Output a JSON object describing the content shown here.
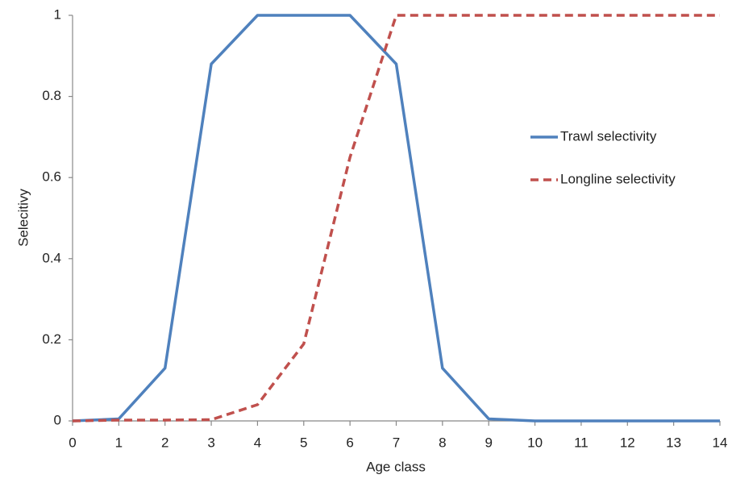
{
  "chart_data": {
    "type": "line",
    "x_label": "Age class",
    "y_label": "Selecitivy",
    "x": [
      0,
      1,
      2,
      3,
      4,
      5,
      6,
      7,
      8,
      9,
      10,
      11,
      12,
      13,
      14
    ],
    "series": [
      {
        "name": "Trawl selectivity",
        "color": "#4f81bd",
        "style": "solid",
        "values": [
          0,
          0.005,
          0.13,
          0.88,
          1,
          1,
          1,
          0.88,
          0.13,
          0.005,
          0,
          0,
          0,
          0,
          0
        ]
      },
      {
        "name": "Longline selectivity",
        "color": "#c0504d",
        "style": "dashed",
        "values": [
          0,
          0.002,
          0.002,
          0.003,
          0.04,
          0.19,
          0.65,
          1,
          1,
          1,
          1,
          1,
          1,
          1,
          1
        ]
      }
    ],
    "xlim": [
      0,
      14
    ],
    "xticks": [
      0,
      1,
      2,
      3,
      4,
      5,
      6,
      7,
      8,
      9,
      10,
      11,
      12,
      13,
      14
    ],
    "ylim": [
      0,
      1
    ],
    "yticks": [
      0,
      0.2,
      0.4,
      0.6,
      0.8,
      1
    ],
    "grid": false,
    "legend": "right"
  }
}
